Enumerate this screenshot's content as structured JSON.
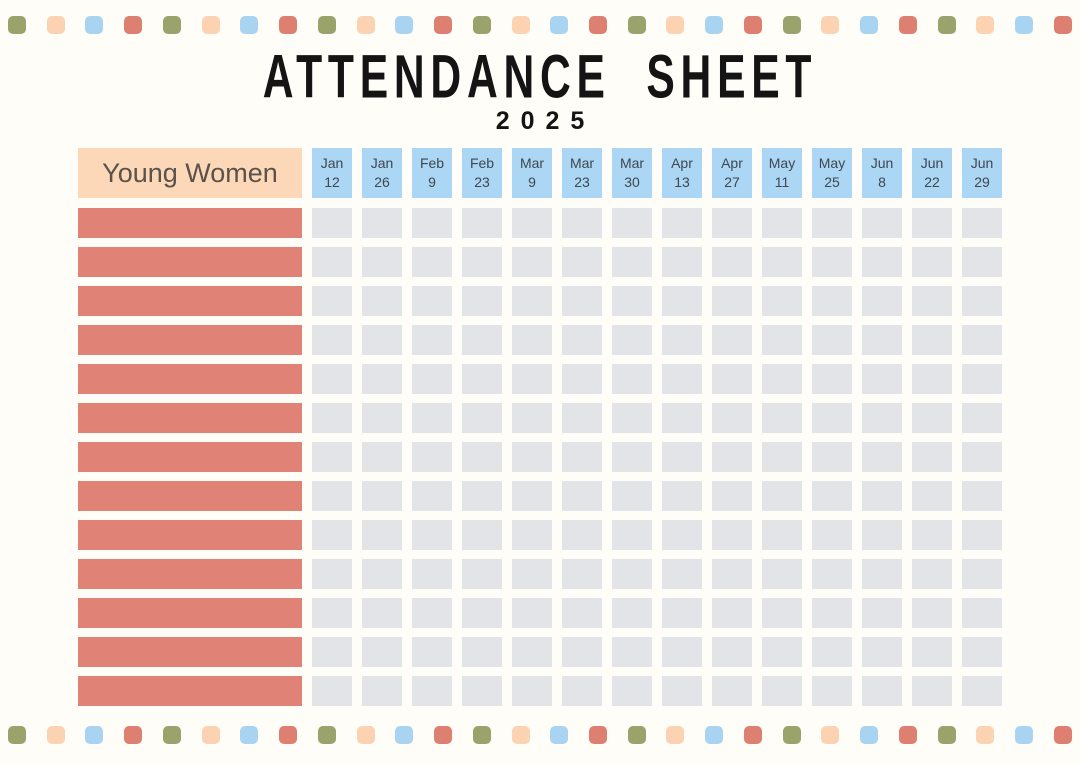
{
  "page": {
    "title": "Attendance Sheet",
    "year": "2025"
  },
  "table": {
    "group_label": "Young Women",
    "dates": [
      {
        "month": "Jan",
        "day": "12"
      },
      {
        "month": "Jan",
        "day": "26"
      },
      {
        "month": "Feb",
        "day": "9"
      },
      {
        "month": "Feb",
        "day": "23"
      },
      {
        "month": "Mar",
        "day": "9"
      },
      {
        "month": "Mar",
        "day": "23"
      },
      {
        "month": "Mar",
        "day": "30"
      },
      {
        "month": "Apr",
        "day": "13"
      },
      {
        "month": "Apr",
        "day": "27"
      },
      {
        "month": "May",
        "day": "11"
      },
      {
        "month": "May",
        "day": "25"
      },
      {
        "month": "Jun",
        "day": "8"
      },
      {
        "month": "Jun",
        "day": "22"
      },
      {
        "month": "Jun",
        "day": "29"
      }
    ],
    "row_count": 13
  },
  "decor": {
    "colors": {
      "olive": "#99a36b",
      "peach": "#fbd3b3",
      "blue": "#a8d4f2",
      "red": "#dd7f71"
    },
    "pattern": [
      "olive",
      "peach",
      "blue",
      "red",
      "olive",
      "peach",
      "blue",
      "red",
      "olive",
      "peach",
      "blue",
      "red",
      "olive",
      "peach",
      "blue",
      "red",
      "olive",
      "peach",
      "blue",
      "red",
      "olive",
      "peach",
      "blue",
      "red",
      "olive",
      "peach",
      "blue",
      "red"
    ]
  },
  "theme": {
    "background": "#fffdf7",
    "title_color": "#141414",
    "header_peach": "#fdd8b8",
    "header_blue": "#abd6f4",
    "header_text": "#3f4750",
    "group_text": "#5a524b",
    "name_bar": "#e08275",
    "cell": "#e2e4e7"
  }
}
